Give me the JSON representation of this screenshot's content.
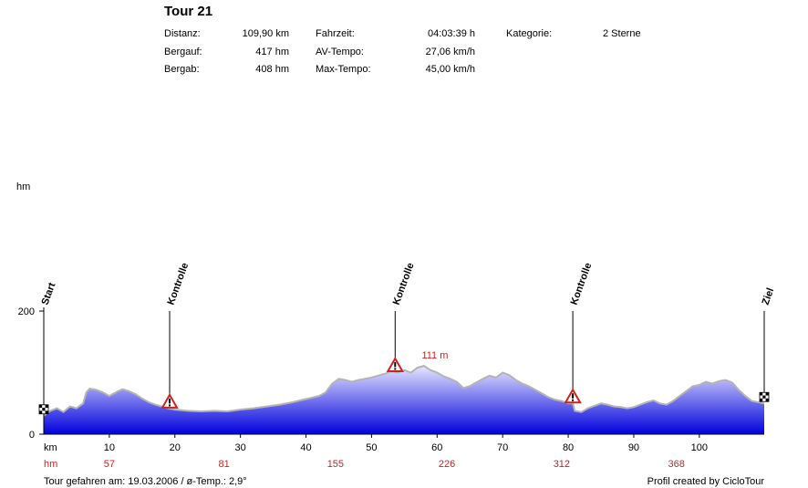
{
  "header": {
    "title": "Tour 21",
    "stats": {
      "distanz_label": "Distanz:",
      "distanz_value": "109,90 km",
      "bergauf_label": "Bergauf:",
      "bergauf_value": "417 hm",
      "bergab_label": "Bergab:",
      "bergab_value": "408 hm",
      "fahrzeit_label": "Fahrzeit:",
      "fahrzeit_value": "04:03:39 h",
      "avtempo_label": "AV-Tempo:",
      "avtempo_value": "27,06 km/h",
      "maxtempo_label": "Max-Tempo:",
      "maxtempo_value": "45,00 km/h",
      "kategorie_label": "Kategorie:",
      "kategorie_value": "2 Sterne"
    }
  },
  "footer": {
    "left": "Tour gefahren am: 19.03.2006  /  ø-Temp.: 2,9°",
    "right": "Profil created by CicloTour"
  },
  "colors": {
    "fill_top": "#e6e6ff",
    "fill_bottom": "#0000dd",
    "outline": "#b4b4b4",
    "accent_red": "#cc2222"
  },
  "chart_data": {
    "type": "area",
    "xlabel": "km",
    "ylabel": "hm",
    "xlim": [
      0,
      109.9
    ],
    "ylim": [
      0,
      200
    ],
    "x_ticks": [
      10,
      20,
      30,
      40,
      50,
      60,
      70,
      80,
      90,
      100
    ],
    "y_ticks": [
      0,
      200
    ],
    "series": [
      {
        "x": [
          0,
          1,
          2,
          3,
          4,
          5,
          6,
          6.5,
          7,
          8,
          9,
          10,
          11,
          12,
          13,
          14,
          15,
          16,
          17,
          18,
          19,
          20,
          22,
          24,
          26,
          28,
          30,
          32,
          34,
          36,
          38,
          40,
          42,
          43,
          44,
          45,
          46,
          47,
          48,
          49,
          50,
          51,
          52,
          53,
          54,
          55,
          56,
          57,
          58,
          59,
          60,
          61,
          62,
          63,
          64,
          65,
          66,
          67,
          68,
          69,
          70,
          71,
          72,
          73,
          74,
          75,
          76,
          77,
          78,
          79,
          80,
          80.7,
          81,
          82,
          83,
          84,
          85,
          86,
          87,
          88,
          89,
          90,
          91,
          92,
          93,
          94,
          95,
          96,
          97,
          98,
          99,
          100,
          101,
          102,
          103,
          104,
          105,
          106,
          107,
          108,
          109.9
        ],
        "y": [
          30,
          38,
          42,
          36,
          45,
          42,
          50,
          68,
          74,
          72,
          68,
          62,
          68,
          73,
          70,
          65,
          58,
          52,
          48,
          45,
          42,
          40,
          38,
          37,
          38,
          37,
          40,
          42,
          45,
          48,
          52,
          57,
          62,
          68,
          82,
          90,
          88,
          85,
          88,
          90,
          92,
          95,
          98,
          102,
          100,
          104,
          100,
          108,
          111,
          104,
          100,
          94,
          90,
          85,
          75,
          78,
          84,
          90,
          95,
          92,
          100,
          96,
          88,
          82,
          78,
          72,
          66,
          60,
          56,
          54,
          50,
          50,
          38,
          36,
          42,
          46,
          50,
          48,
          45,
          44,
          42,
          44,
          48,
          52,
          55,
          50,
          48,
          54,
          62,
          70,
          78,
          80,
          85,
          82,
          86,
          88,
          84,
          72,
          62,
          54,
          50
        ]
      }
    ],
    "km_labels": [
      {
        "km": 0,
        "label": "Start"
      },
      {
        "km": 19.2,
        "label": "Kontrolle"
      },
      {
        "km": 53.6,
        "label": "Kontrolle"
      },
      {
        "km": 80.7,
        "label": "Kontrolle"
      },
      {
        "km": 109.9,
        "label": "Ziel"
      }
    ],
    "peak_annotation": {
      "km": 58,
      "hm": 111,
      "label": "111 m"
    },
    "height_row": {
      "label": "hm",
      "entries": [
        {
          "km": 10,
          "hm": "57"
        },
        {
          "km": 27.5,
          "hm": "81"
        },
        {
          "km": 44.5,
          "hm": "155"
        },
        {
          "km": 61.5,
          "hm": "226"
        },
        {
          "km": 79,
          "hm": "312"
        },
        {
          "km": 96.5,
          "hm": "368"
        }
      ]
    }
  }
}
